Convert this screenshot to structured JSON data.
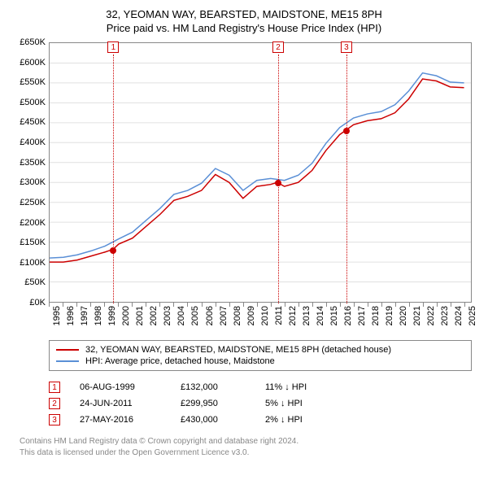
{
  "title_line1": "32, YEOMAN WAY, BEARSTED, MAIDSTONE, ME15 8PH",
  "title_line2": "Price paid vs. HM Land Registry's House Price Index (HPI)",
  "chart": {
    "type": "line",
    "background_color": "#ffffff",
    "grid_color": "#e0e0e0",
    "axis_color": "#888888",
    "xlim": [
      1995,
      2025.5
    ],
    "ylim": [
      0,
      650000
    ],
    "ytick_step": 50000,
    "ytick_labels": [
      "£0K",
      "£50K",
      "£100K",
      "£150K",
      "£200K",
      "£250K",
      "£300K",
      "£350K",
      "£400K",
      "£450K",
      "£500K",
      "£550K",
      "£600K",
      "£650K"
    ],
    "xtick_years": [
      1995,
      1996,
      1997,
      1998,
      1999,
      2000,
      2001,
      2002,
      2003,
      2004,
      2005,
      2006,
      2007,
      2008,
      2009,
      2010,
      2011,
      2012,
      2013,
      2014,
      2015,
      2016,
      2017,
      2018,
      2019,
      2020,
      2021,
      2022,
      2023,
      2024,
      2025
    ],
    "series": [
      {
        "name": "property",
        "label": "32, YEOMAN WAY, BEARSTED, MAIDSTONE, ME15 8PH (detached house)",
        "color": "#cc0000",
        "line_width": 1.5,
        "points": [
          [
            1995,
            100000
          ],
          [
            1996,
            100000
          ],
          [
            1997,
            105000
          ],
          [
            1998,
            115000
          ],
          [
            1999,
            125000
          ],
          [
            1999.6,
            132000
          ],
          [
            2000,
            145000
          ],
          [
            2001,
            160000
          ],
          [
            2002,
            190000
          ],
          [
            2003,
            220000
          ],
          [
            2004,
            255000
          ],
          [
            2005,
            265000
          ],
          [
            2006,
            280000
          ],
          [
            2007,
            320000
          ],
          [
            2008,
            300000
          ],
          [
            2009,
            260000
          ],
          [
            2010,
            290000
          ],
          [
            2011,
            295000
          ],
          [
            2011.48,
            299950
          ],
          [
            2012,
            290000
          ],
          [
            2013,
            300000
          ],
          [
            2014,
            330000
          ],
          [
            2015,
            380000
          ],
          [
            2016,
            420000
          ],
          [
            2016.4,
            430000
          ],
          [
            2017,
            445000
          ],
          [
            2018,
            455000
          ],
          [
            2019,
            460000
          ],
          [
            2020,
            475000
          ],
          [
            2021,
            510000
          ],
          [
            2022,
            560000
          ],
          [
            2023,
            555000
          ],
          [
            2024,
            540000
          ],
          [
            2025,
            538000
          ]
        ]
      },
      {
        "name": "hpi",
        "label": "HPI: Average price, detached house, Maidstone",
        "color": "#5a8fd6",
        "line_width": 1.5,
        "points": [
          [
            1995,
            110000
          ],
          [
            1996,
            112000
          ],
          [
            1997,
            118000
          ],
          [
            1998,
            128000
          ],
          [
            1999,
            140000
          ],
          [
            2000,
            158000
          ],
          [
            2001,
            175000
          ],
          [
            2002,
            205000
          ],
          [
            2003,
            235000
          ],
          [
            2004,
            270000
          ],
          [
            2005,
            280000
          ],
          [
            2006,
            298000
          ],
          [
            2007,
            335000
          ],
          [
            2008,
            318000
          ],
          [
            2009,
            280000
          ],
          [
            2010,
            305000
          ],
          [
            2011,
            310000
          ],
          [
            2012,
            305000
          ],
          [
            2013,
            318000
          ],
          [
            2014,
            348000
          ],
          [
            2015,
            398000
          ],
          [
            2016,
            438000
          ],
          [
            2017,
            462000
          ],
          [
            2018,
            472000
          ],
          [
            2019,
            478000
          ],
          [
            2020,
            495000
          ],
          [
            2021,
            530000
          ],
          [
            2022,
            575000
          ],
          [
            2023,
            568000
          ],
          [
            2024,
            552000
          ],
          [
            2025,
            550000
          ]
        ]
      }
    ],
    "sale_markers": [
      {
        "n": "1",
        "year": 1999.6,
        "price": 132000,
        "date": "06-AUG-1999",
        "price_label": "£132,000",
        "diff": "11% ↓ HPI"
      },
      {
        "n": "2",
        "year": 2011.48,
        "price": 299950,
        "date": "24-JUN-2011",
        "price_label": "£299,950",
        "diff": "5% ↓ HPI"
      },
      {
        "n": "3",
        "year": 2016.4,
        "price": 430000,
        "date": "27-MAY-2016",
        "price_label": "£430,000",
        "diff": "2% ↓ HPI"
      }
    ]
  },
  "footer_line1": "Contains HM Land Registry data © Crown copyright and database right 2024.",
  "footer_line2": "This data is licensed under the Open Government Licence v3.0."
}
